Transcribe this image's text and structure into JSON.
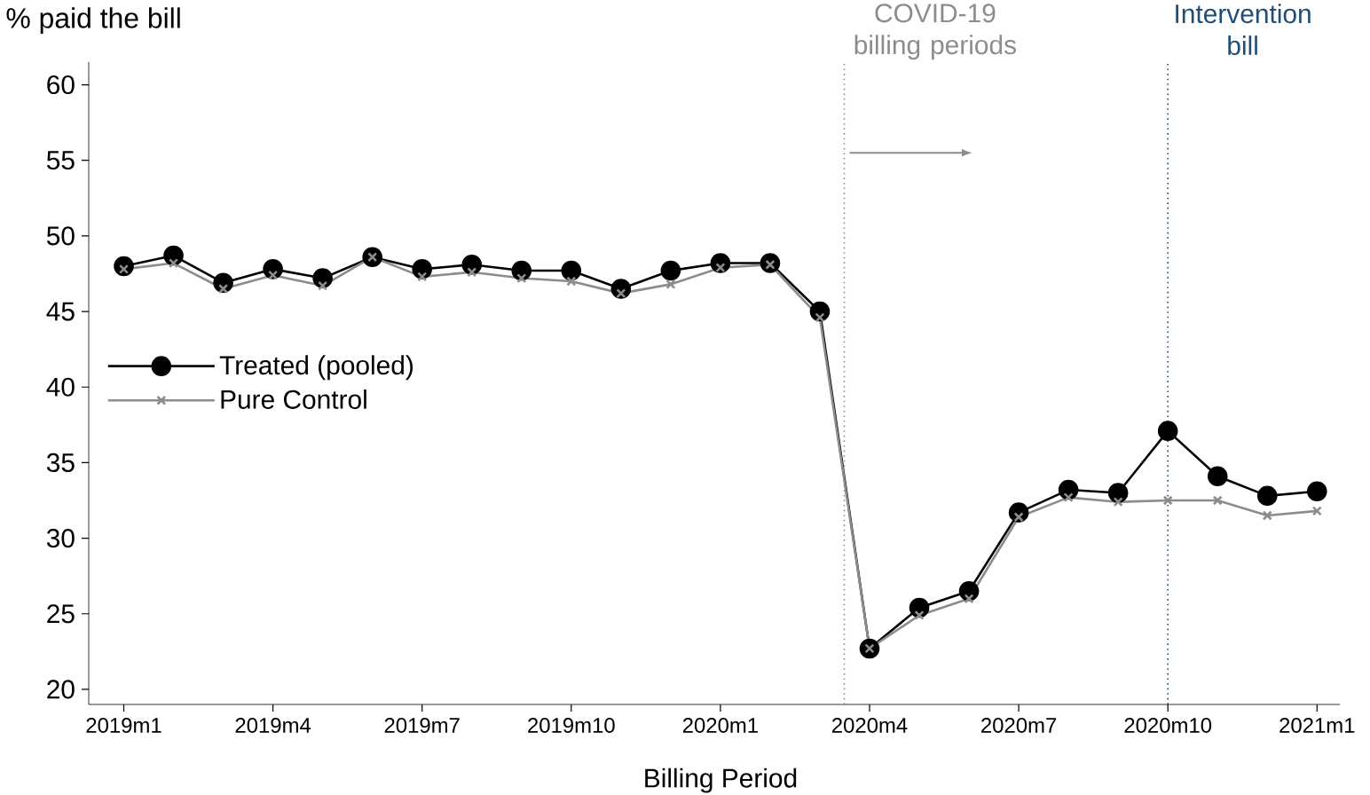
{
  "chart_data": {
    "type": "line",
    "ylabel": "% paid the bill",
    "xlabel": "Billing Period",
    "x": [
      "2019-01",
      "2019-02",
      "2019-03",
      "2019-04",
      "2019-05",
      "2019-06",
      "2019-07",
      "2019-08",
      "2019-09",
      "2019-10",
      "2019-11",
      "2019-12",
      "2020-01",
      "2020-02",
      "2020-03",
      "2020-04",
      "2020-05",
      "2020-06",
      "2020-07",
      "2020-08",
      "2020-09",
      "2020-10",
      "2020-11",
      "2020-12",
      "2021-01"
    ],
    "series": [
      {
        "name": "Treated (pooled)",
        "color": "#000000",
        "marker": "circle",
        "values": [
          48.0,
          48.7,
          46.9,
          47.8,
          47.2,
          48.6,
          47.8,
          48.1,
          47.7,
          47.7,
          46.5,
          47.7,
          48.2,
          48.2,
          45.0,
          22.7,
          25.4,
          26.5,
          31.7,
          33.2,
          33.0,
          37.1,
          34.1,
          32.8,
          33.1
        ]
      },
      {
        "name": "Pure Control",
        "color": "#8c8c8c",
        "marker": "cross",
        "values": [
          47.8,
          48.2,
          46.5,
          47.4,
          46.7,
          48.6,
          47.3,
          47.6,
          47.2,
          47.0,
          46.2,
          46.8,
          47.9,
          48.1,
          44.6,
          22.7,
          24.9,
          26.0,
          31.4,
          32.7,
          32.4,
          32.5,
          32.5,
          31.5,
          31.8
        ]
      }
    ],
    "xlim": [
      "2018-12-10",
      "2021-01-15"
    ],
    "xticks": [
      {
        "value": "2019-01",
        "label": "2019m1"
      },
      {
        "value": "2019-04",
        "label": "2019m4"
      },
      {
        "value": "2019-07",
        "label": "2019m7"
      },
      {
        "value": "2019-10",
        "label": "2019m10"
      },
      {
        "value": "2020-01",
        "label": "2020m1"
      },
      {
        "value": "2020-04",
        "label": "2020m4"
      },
      {
        "value": "2020-07",
        "label": "2020m7"
      },
      {
        "value": "2020-10",
        "label": "2020m10"
      },
      {
        "value": "2021-01",
        "label": "2021m1"
      }
    ],
    "ylim": [
      19,
      61.5
    ],
    "yticks": [
      20,
      25,
      30,
      35,
      40,
      45,
      50,
      55,
      60
    ],
    "ref_lines": [
      {
        "axis": "x",
        "value": "2020-03-16",
        "label": "COVID-19 billing periods",
        "color": "#8c8c8c",
        "line_style": "dotted"
      },
      {
        "axis": "x",
        "value": "2020-10",
        "label": "Intervention bill",
        "color": "#1f4e79",
        "line_style": "dotted"
      }
    ],
    "legend": "left",
    "grid": false
  }
}
